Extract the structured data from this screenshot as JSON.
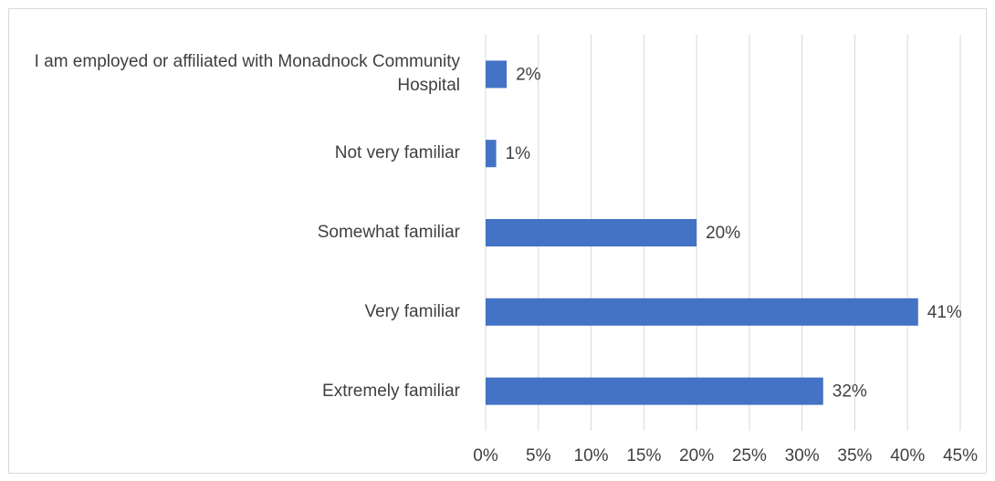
{
  "chart_data": {
    "type": "hbar",
    "categories": [
      "I am employed or affiliated with Monadnock Community Hospital",
      "Not very familiar",
      "Somewhat familiar",
      "Very familiar",
      "Extremely familiar"
    ],
    "values": [
      2,
      1,
      20,
      41,
      32
    ],
    "value_labels": [
      "2%",
      "1%",
      "20%",
      "41%",
      "32%"
    ],
    "color": "#4472c4",
    "xlim": [
      0,
      45
    ],
    "xticks": [
      {
        "value": 0,
        "label": "0%"
      },
      {
        "value": 5,
        "label": "5%"
      },
      {
        "value": 10,
        "label": "10%"
      },
      {
        "value": 15,
        "label": "15%"
      },
      {
        "value": 20,
        "label": "20%"
      },
      {
        "value": 25,
        "label": "25%"
      },
      {
        "value": 30,
        "label": "30%"
      },
      {
        "value": 35,
        "label": "35%"
      },
      {
        "value": 40,
        "label": "40%"
      },
      {
        "value": 45,
        "label": "45%"
      }
    ],
    "grid": true
  }
}
